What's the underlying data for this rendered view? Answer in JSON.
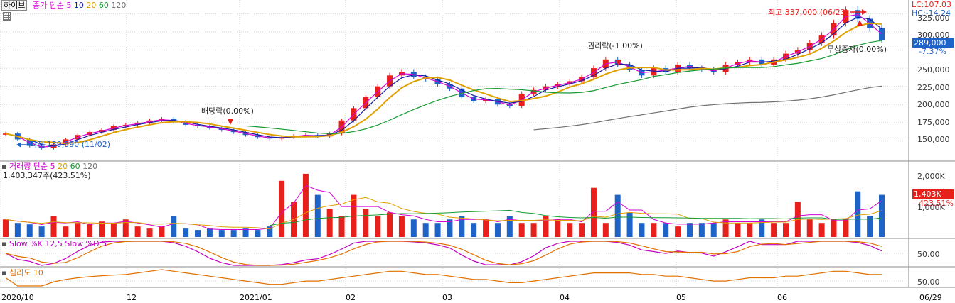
{
  "panel_price": {
    "symbol": "하이브",
    "legend_label": "종가 단순",
    "ma_periods": [
      "5",
      "10",
      "20",
      "60",
      "120"
    ],
    "ma_colors": [
      "#d400d4",
      "#1a1aa0",
      "#e0a000",
      "#159a30",
      "#707070"
    ],
    "info_lc": "LC:107.03",
    "info_hc": "HC:-14.24",
    "current_price_tag": "289,000",
    "current_pct_tag": "-7.37%",
    "annot_dividend": "배당락(0.00%)",
    "annot_rights": "권리락(-1.00%)",
    "annot_listing": "무상증자(0.00%)",
    "annot_high": "최고 337,000 (06/23)",
    "annot_low": "최저 139,590 (11/02)",
    "y_ticks": [
      "325,000",
      "300,000",
      "275,000",
      "250,000",
      "225,000",
      "200,000",
      "175,000",
      "150,000"
    ]
  },
  "panel_volume": {
    "legend_label": "거래량 단순",
    "ma_periods": [
      "5",
      "20",
      "60",
      "120"
    ],
    "sub_label": "1,403,347주(423.51%)",
    "current_tag": "1,403K",
    "current_pct_tag": "423.51%",
    "y_ticks": [
      "2,000K",
      "1,000K"
    ]
  },
  "panel_stoch": {
    "legend_label": "Slow %K 12,5  Slow %D 5",
    "y_tick": "50.00"
  },
  "panel_psy": {
    "legend_label": "심리도 10",
    "y_tick": "50.00"
  },
  "x_axis": {
    "labels": [
      "2020/10",
      "12",
      "2021/01",
      "02",
      "03",
      "04",
      "05",
      "06",
      "06/29"
    ]
  },
  "colors": {
    "up": "#e8201c",
    "down": "#1d63c8",
    "grid": "#d0d0d0"
  },
  "chart_data": {
    "type": "candlestick",
    "title": "하이브",
    "ylim": [
      125000,
      340000
    ],
    "y_ticks": [
      150000,
      175000,
      200000,
      225000,
      250000,
      275000,
      300000,
      325000
    ],
    "annotations": {
      "high": {
        "label": "최고 337,000 (06/23)",
        "value": 337000
      },
      "low": {
        "label": "최저 139,590 (11/02)",
        "value": 139590
      }
    },
    "close_series_approx": [
      160000,
      152000,
      143000,
      140000,
      145000,
      152000,
      158000,
      162000,
      165000,
      170000,
      172000,
      175000,
      178000,
      180000,
      176000,
      172000,
      170000,
      168000,
      165000,
      162000,
      158000,
      155000,
      153000,
      155000,
      157000,
      158000,
      156000,
      160000,
      178000,
      195000,
      210000,
      225000,
      240000,
      245000,
      238000,
      235000,
      228000,
      222000,
      210000,
      205000,
      208000,
      200000,
      198000,
      215000,
      220000,
      225000,
      228000,
      232000,
      238000,
      250000,
      262000,
      255000,
      248000,
      240000,
      250000,
      245000,
      255000,
      250000,
      248000,
      245000,
      255000,
      258000,
      262000,
      255000,
      262000,
      270000,
      275000,
      285000,
      295000,
      312000,
      330000,
      318000,
      305000,
      289000
    ],
    "volume_series_approx": [
      0.25,
      0.2,
      0.18,
      0.15,
      0.3,
      0.15,
      0.2,
      0.18,
      0.22,
      0.2,
      0.25,
      0.15,
      0.12,
      0.15,
      0.3,
      0.12,
      0.1,
      0.12,
      0.1,
      0.1,
      0.12,
      0.1,
      0.15,
      0.8,
      0.5,
      0.9,
      0.6,
      0.4,
      0.3,
      0.6,
      0.4,
      0.3,
      0.35,
      0.3,
      0.25,
      0.2,
      0.2,
      0.25,
      0.3,
      0.2,
      0.25,
      0.2,
      0.3,
      0.2,
      0.2,
      0.3,
      0.25,
      0.2,
      0.2,
      0.7,
      0.2,
      0.6,
      0.35,
      0.2,
      0.2,
      0.2,
      0.15,
      0.2,
      0.2,
      0.2,
      0.25,
      0.2,
      0.2,
      0.25,
      0.2,
      0.2,
      0.5,
      0.25,
      0.2,
      0.25,
      0.25,
      0.65,
      0.3,
      0.6
    ]
  }
}
